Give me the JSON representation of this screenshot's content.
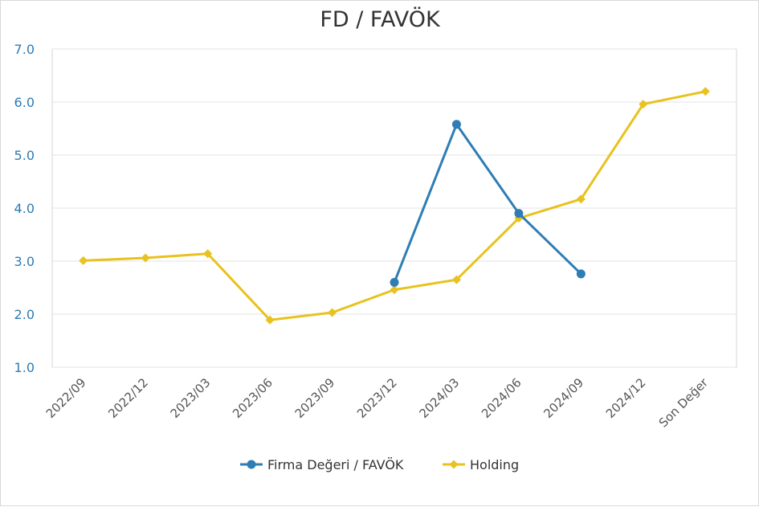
{
  "chart_data": {
    "type": "line",
    "title": "FD / FAVÖK",
    "categories": [
      "2022/09",
      "2022/12",
      "2023/03",
      "2023/06",
      "2023/09",
      "2023/12",
      "2024/03",
      "2024/06",
      "2024/09",
      "2024/12",
      "Son Değer"
    ],
    "y_tick_labels": [
      "1.0",
      "2.0",
      "3.0",
      "4.0",
      "5.0",
      "6.0",
      "7.0"
    ],
    "ylim": [
      1,
      7
    ],
    "grid": true,
    "legend_position": "bottom",
    "series": [
      {
        "name": "Firma Değeri / FAVÖK",
        "color": "#2e7db5",
        "marker": "circle",
        "values": [
          null,
          null,
          null,
          null,
          null,
          2.6,
          5.58,
          3.9,
          2.76,
          null,
          null
        ]
      },
      {
        "name": "Holding",
        "color": "#e8c21e",
        "marker": "diamond",
        "values": [
          3.01,
          3.06,
          3.14,
          1.89,
          2.03,
          2.46,
          2.65,
          3.81,
          4.17,
          5.96,
          6.2
        ]
      }
    ]
  }
}
